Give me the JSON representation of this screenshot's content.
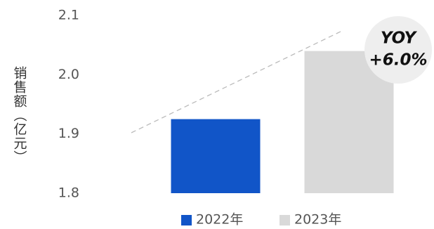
{
  "chart_data": {
    "type": "bar",
    "categories": [
      "2022年",
      "2023年"
    ],
    "values": [
      1.925,
      2.04
    ],
    "ylabel": "销售额（亿元）",
    "ylim": [
      1.8,
      2.1
    ],
    "yticks": [
      "2.1",
      "2.0",
      "1.9",
      "1.8"
    ],
    "yticks_values": [
      2.1,
      2.0,
      1.9,
      1.8
    ],
    "colors": [
      "#1155C8",
      "#D9D9D9"
    ],
    "legend": {
      "position": "bottom",
      "entries": [
        "2022年",
        "2023年"
      ]
    },
    "annotation": {
      "line1": "YOY",
      "line2": "+6.0%",
      "badge_color": "#EEEEEE",
      "text_color": "#111111"
    },
    "trend_line": {
      "style": "dashed",
      "color": "#BBBBBB"
    },
    "grid": false
  }
}
